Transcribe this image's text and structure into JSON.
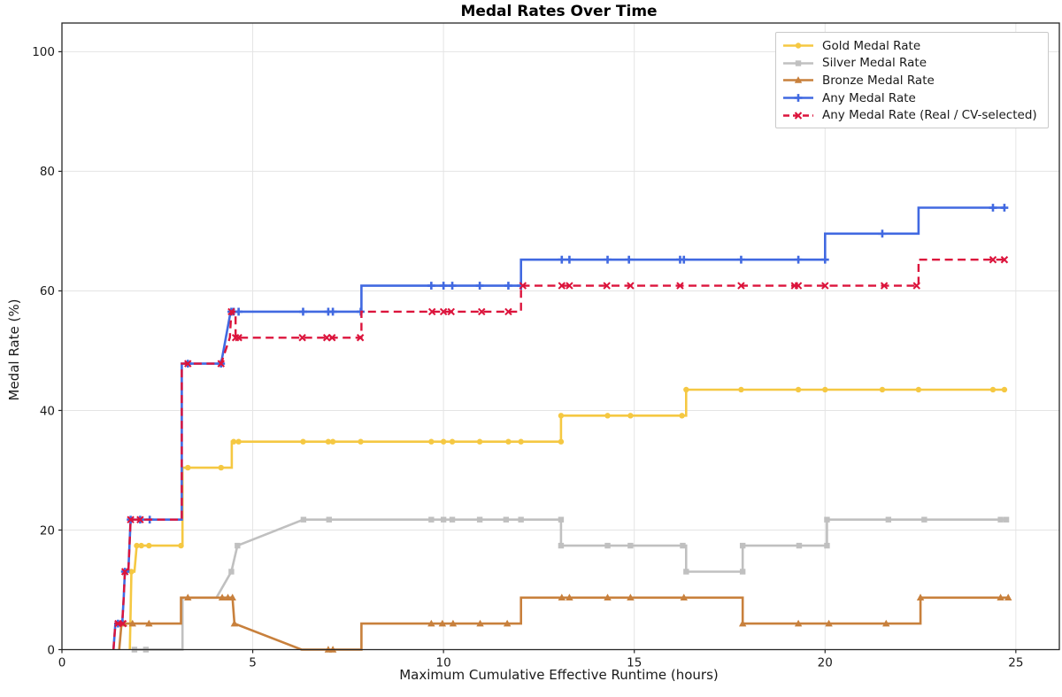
{
  "chart_data": {
    "type": "line",
    "title": "Medal Rates Over Time",
    "xlabel": "Maximum Cumulative Effective Runtime (hours)",
    "ylabel": "Medal Rate (%)",
    "x_ticks": [
      0,
      5,
      10,
      15,
      20,
      25
    ],
    "y_ticks": [
      0,
      20,
      40,
      60,
      80,
      100
    ],
    "xlim": [
      0,
      26.14
    ],
    "ylim": [
      0,
      104.8
    ],
    "grid": true,
    "legend_position": "upper right",
    "series": [
      {
        "name": "Gold Medal Rate",
        "color": "#F5C842",
        "marker": "circle",
        "dash": "solid",
        "points": [
          [
            1.78,
            0
          ],
          [
            1.82,
            13.04
          ],
          [
            1.9,
            13.04
          ],
          [
            1.96,
            17.39
          ],
          [
            3.16,
            17.39
          ],
          [
            3.16,
            30.43
          ],
          [
            4.45,
            30.43
          ],
          [
            4.45,
            34.78
          ],
          [
            13.08,
            34.78
          ],
          [
            13.08,
            39.13
          ],
          [
            16.36,
            39.13
          ],
          [
            16.36,
            43.48
          ],
          [
            24.75,
            43.48
          ]
        ],
        "marker_points": [
          [
            1.82,
            13.04
          ],
          [
            1.96,
            17.39
          ],
          [
            2.08,
            17.39
          ],
          [
            2.28,
            17.39
          ],
          [
            3.12,
            17.39
          ],
          [
            3.3,
            30.43
          ],
          [
            4.17,
            30.43
          ],
          [
            4.5,
            34.78
          ],
          [
            4.63,
            34.78
          ],
          [
            6.32,
            34.78
          ],
          [
            6.98,
            34.78
          ],
          [
            7.1,
            34.78
          ],
          [
            7.83,
            34.78
          ],
          [
            9.68,
            34.78
          ],
          [
            10.0,
            34.78
          ],
          [
            10.23,
            34.78
          ],
          [
            10.95,
            34.78
          ],
          [
            11.7,
            34.78
          ],
          [
            12.03,
            34.78
          ],
          [
            13.08,
            34.78
          ],
          [
            13.08,
            39.13
          ],
          [
            14.3,
            39.13
          ],
          [
            14.9,
            39.13
          ],
          [
            16.25,
            39.13
          ],
          [
            16.36,
            43.48
          ],
          [
            17.8,
            43.48
          ],
          [
            19.3,
            43.48
          ],
          [
            20.0,
            43.48
          ],
          [
            21.5,
            43.48
          ],
          [
            22.45,
            43.48
          ],
          [
            24.4,
            43.48
          ],
          [
            24.7,
            43.48
          ]
        ]
      },
      {
        "name": "Silver Medal Rate",
        "color": "#C0C0C0",
        "marker": "square",
        "dash": "solid",
        "points": [
          [
            1.85,
            0
          ],
          [
            3.16,
            0
          ],
          [
            3.16,
            8.7
          ],
          [
            4.05,
            8.7
          ],
          [
            4.44,
            13.04
          ],
          [
            4.6,
            17.39
          ],
          [
            6.33,
            21.74
          ],
          [
            13.08,
            21.74
          ],
          [
            13.08,
            17.39
          ],
          [
            16.36,
            17.39
          ],
          [
            16.36,
            13.04
          ],
          [
            17.84,
            13.04
          ],
          [
            17.84,
            17.39
          ],
          [
            20.05,
            17.39
          ],
          [
            20.05,
            21.74
          ],
          [
            24.75,
            21.74
          ]
        ],
        "marker_points": [
          [
            1.9,
            0
          ],
          [
            2.2,
            0
          ],
          [
            4.44,
            13.04
          ],
          [
            4.6,
            17.39
          ],
          [
            6.33,
            21.74
          ],
          [
            7.0,
            21.74
          ],
          [
            9.68,
            21.74
          ],
          [
            10.0,
            21.74
          ],
          [
            10.23,
            21.74
          ],
          [
            10.95,
            21.74
          ],
          [
            11.64,
            21.74
          ],
          [
            12.03,
            21.74
          ],
          [
            13.08,
            21.74
          ],
          [
            13.08,
            17.39
          ],
          [
            14.3,
            17.39
          ],
          [
            14.9,
            17.39
          ],
          [
            16.27,
            17.39
          ],
          [
            16.36,
            13.04
          ],
          [
            17.84,
            13.04
          ],
          [
            17.84,
            17.39
          ],
          [
            19.32,
            17.39
          ],
          [
            20.05,
            17.39
          ],
          [
            20.05,
            21.74
          ],
          [
            21.66,
            21.74
          ],
          [
            22.6,
            21.74
          ],
          [
            24.6,
            21.74
          ],
          [
            24.75,
            21.74
          ]
        ]
      },
      {
        "name": "Bronze Medal Rate",
        "color": "#C8803C",
        "marker": "triangle-up",
        "dash": "solid",
        "points": [
          [
            1.5,
            0
          ],
          [
            1.56,
            4.35
          ],
          [
            3.12,
            4.35
          ],
          [
            3.12,
            8.7
          ],
          [
            4.47,
            8.7
          ],
          [
            4.52,
            4.35
          ],
          [
            6.28,
            0
          ],
          [
            7.85,
            0
          ],
          [
            7.85,
            4.35
          ],
          [
            12.03,
            4.35
          ],
          [
            12.03,
            8.7
          ],
          [
            17.84,
            8.7
          ],
          [
            17.84,
            4.35
          ],
          [
            22.5,
            4.35
          ],
          [
            22.5,
            8.7
          ],
          [
            24.8,
            8.7
          ]
        ],
        "marker_points": [
          [
            1.62,
            4.35
          ],
          [
            1.85,
            4.35
          ],
          [
            2.28,
            4.35
          ],
          [
            3.3,
            8.7
          ],
          [
            4.2,
            8.7
          ],
          [
            4.35,
            8.7
          ],
          [
            4.47,
            8.7
          ],
          [
            4.52,
            4.35
          ],
          [
            6.98,
            0
          ],
          [
            7.1,
            0
          ],
          [
            9.68,
            4.35
          ],
          [
            9.97,
            4.35
          ],
          [
            10.25,
            4.35
          ],
          [
            10.96,
            4.35
          ],
          [
            11.67,
            4.35
          ],
          [
            13.1,
            8.7
          ],
          [
            13.3,
            8.7
          ],
          [
            14.3,
            8.7
          ],
          [
            14.9,
            8.7
          ],
          [
            16.3,
            8.7
          ],
          [
            17.84,
            4.35
          ],
          [
            19.3,
            4.35
          ],
          [
            20.1,
            4.35
          ],
          [
            21.6,
            4.35
          ],
          [
            22.5,
            8.7
          ],
          [
            24.6,
            8.7
          ],
          [
            24.8,
            8.7
          ]
        ]
      },
      {
        "name": "Any Medal Rate",
        "color": "#4169E1",
        "marker": "plus",
        "dash": "solid",
        "points": [
          [
            1.35,
            0
          ],
          [
            1.4,
            4.35
          ],
          [
            1.58,
            4.35
          ],
          [
            1.62,
            8.7
          ],
          [
            1.65,
            13.04
          ],
          [
            1.74,
            13.04
          ],
          [
            1.8,
            21.74
          ],
          [
            3.14,
            21.74
          ],
          [
            3.14,
            47.83
          ],
          [
            4.17,
            47.83
          ],
          [
            4.42,
            56.52
          ],
          [
            7.85,
            56.52
          ],
          [
            7.85,
            60.87
          ],
          [
            12.03,
            60.87
          ],
          [
            12.03,
            65.22
          ],
          [
            20.0,
            65.22
          ],
          [
            20.0,
            69.57
          ],
          [
            22.45,
            69.57
          ],
          [
            22.45,
            73.91
          ],
          [
            24.72,
            73.91
          ]
        ],
        "marker_points": [
          [
            1.47,
            4.35
          ],
          [
            1.65,
            13.04
          ],
          [
            1.8,
            21.74
          ],
          [
            2.05,
            21.74
          ],
          [
            2.3,
            21.74
          ],
          [
            3.3,
            47.83
          ],
          [
            4.17,
            47.83
          ],
          [
            4.44,
            56.52
          ],
          [
            4.5,
            56.52
          ],
          [
            4.63,
            56.52
          ],
          [
            6.32,
            56.52
          ],
          [
            6.98,
            56.52
          ],
          [
            7.1,
            56.52
          ],
          [
            7.83,
            56.52
          ],
          [
            9.68,
            60.87
          ],
          [
            10.0,
            60.87
          ],
          [
            10.23,
            60.87
          ],
          [
            10.95,
            60.87
          ],
          [
            11.7,
            60.87
          ],
          [
            12.03,
            60.87
          ],
          [
            13.1,
            65.22
          ],
          [
            13.3,
            65.22
          ],
          [
            14.3,
            65.22
          ],
          [
            14.86,
            65.22
          ],
          [
            16.2,
            65.22
          ],
          [
            16.3,
            65.22
          ],
          [
            17.8,
            65.22
          ],
          [
            19.3,
            65.22
          ],
          [
            20.0,
            65.22
          ],
          [
            21.5,
            69.57
          ],
          [
            24.4,
            73.91
          ],
          [
            24.7,
            73.91
          ]
        ]
      },
      {
        "name": "Any Medal Rate (Real / CV-selected)",
        "color": "#DC143C",
        "marker": "x",
        "dash": "dashed",
        "points": [
          [
            1.35,
            0
          ],
          [
            1.4,
            4.35
          ],
          [
            1.58,
            4.35
          ],
          [
            1.62,
            8.7
          ],
          [
            1.65,
            13.04
          ],
          [
            1.74,
            13.04
          ],
          [
            1.8,
            21.74
          ],
          [
            3.14,
            21.74
          ],
          [
            3.14,
            47.83
          ],
          [
            4.17,
            47.83
          ],
          [
            4.4,
            52.17
          ],
          [
            4.44,
            56.52
          ],
          [
            4.55,
            56.52
          ],
          [
            4.55,
            52.17
          ],
          [
            7.85,
            52.17
          ],
          [
            7.85,
            56.52
          ],
          [
            12.03,
            56.52
          ],
          [
            12.03,
            60.87
          ],
          [
            22.45,
            60.87
          ],
          [
            22.45,
            65.22
          ],
          [
            24.72,
            65.22
          ]
        ],
        "marker_points": [
          [
            1.47,
            4.35
          ],
          [
            1.6,
            4.35
          ],
          [
            1.65,
            13.04
          ],
          [
            1.8,
            21.74
          ],
          [
            2.05,
            21.74
          ],
          [
            3.3,
            47.83
          ],
          [
            4.17,
            47.83
          ],
          [
            4.44,
            56.52
          ],
          [
            4.55,
            52.17
          ],
          [
            4.63,
            52.17
          ],
          [
            6.3,
            52.17
          ],
          [
            6.94,
            52.17
          ],
          [
            7.08,
            52.17
          ],
          [
            7.82,
            52.17
          ],
          [
            9.7,
            56.52
          ],
          [
            10.0,
            56.52
          ],
          [
            10.2,
            56.52
          ],
          [
            11.0,
            56.52
          ],
          [
            11.7,
            56.52
          ],
          [
            12.08,
            60.87
          ],
          [
            13.1,
            60.87
          ],
          [
            13.3,
            60.87
          ],
          [
            14.28,
            60.87
          ],
          [
            14.9,
            60.87
          ],
          [
            16.2,
            60.87
          ],
          [
            17.8,
            60.87
          ],
          [
            19.2,
            60.87
          ],
          [
            19.3,
            60.87
          ],
          [
            20.0,
            60.87
          ],
          [
            21.55,
            60.87
          ],
          [
            22.4,
            60.87
          ],
          [
            24.4,
            65.22
          ],
          [
            24.7,
            65.22
          ]
        ]
      }
    ],
    "style": {
      "grid_color": "#e4e4e4",
      "spine_color": "#262626",
      "tick_label_color": "#1a1a1a"
    }
  }
}
